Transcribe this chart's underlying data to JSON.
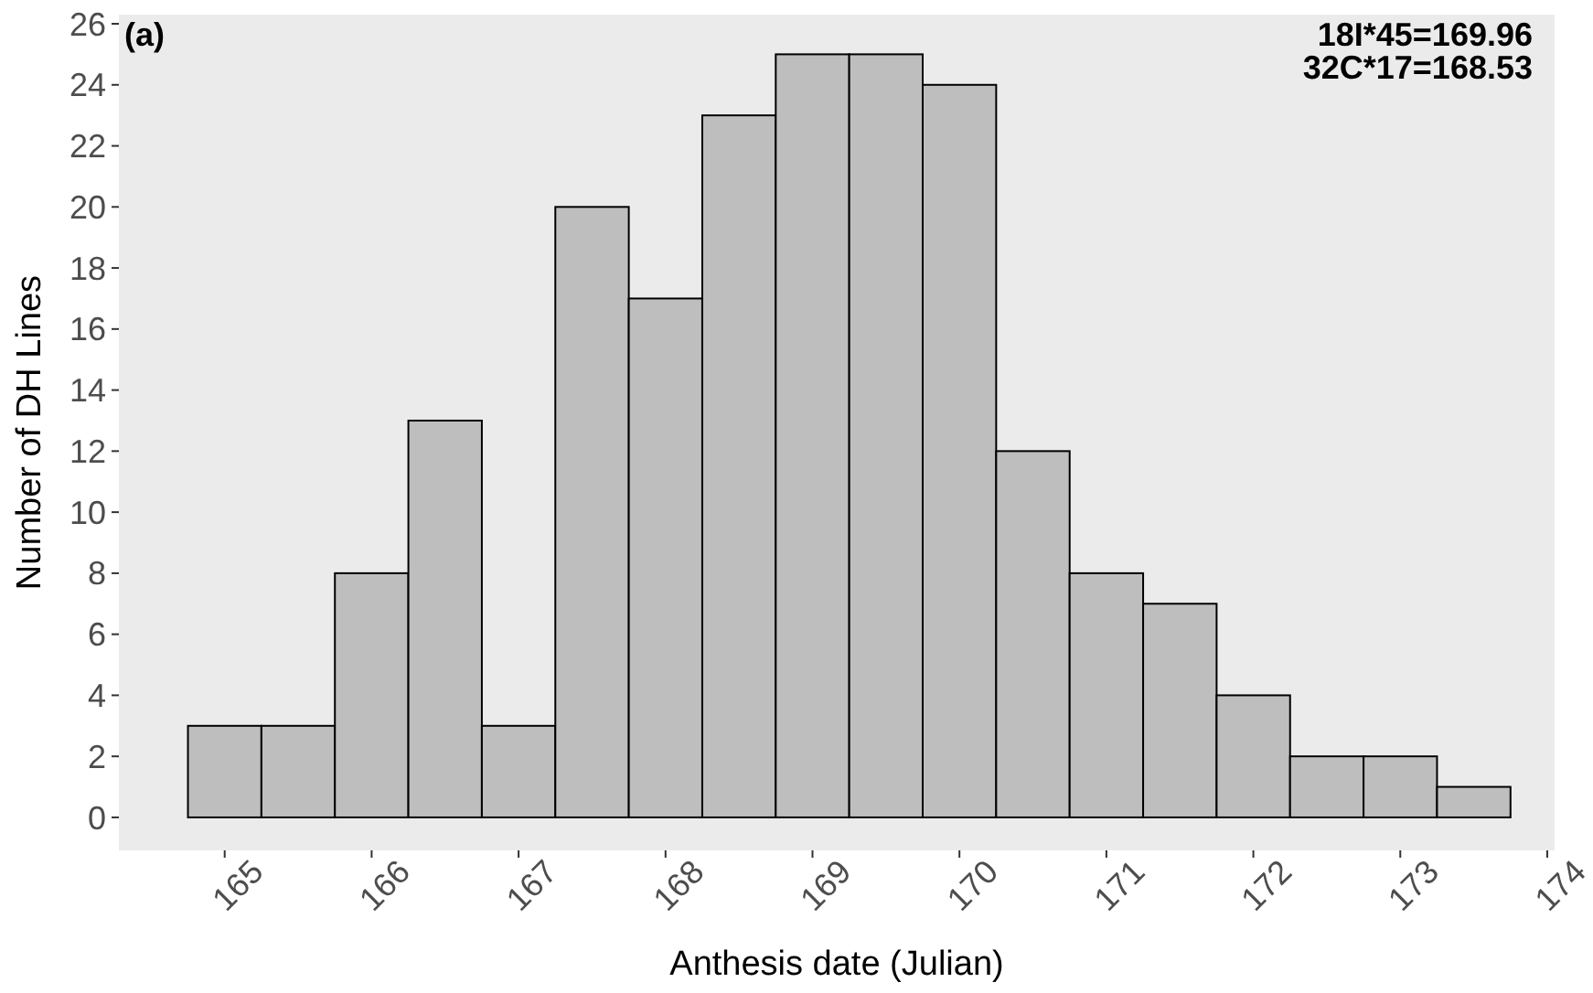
{
  "chart_data": {
    "type": "histogram",
    "xlabel": "Anthesis date (Julian)",
    "ylabel": "Number of DH Lines",
    "bins": [
      164.75,
      165.25,
      165.75,
      166.25,
      166.75,
      167.25,
      167.75,
      168.25,
      168.75,
      169.25,
      169.75,
      170.25,
      170.75,
      171.25,
      171.75,
      172.25,
      172.75,
      173.25,
      173.75
    ],
    "values": [
      3,
      3,
      8,
      13,
      3,
      20,
      17,
      23,
      25,
      25,
      24,
      12,
      8,
      7,
      4,
      2,
      2,
      1
    ],
    "color": "#bebebe",
    "xlim": [
      164.28,
      174.05
    ],
    "ylim": [
      -1.08,
      26.3
    ],
    "xticks": [
      165,
      166,
      167,
      168,
      169,
      170,
      171,
      172,
      173,
      174
    ],
    "yticks": [
      0,
      2,
      4,
      6,
      8,
      10,
      12,
      14,
      16,
      18,
      20,
      22,
      24,
      26
    ],
    "grid": false,
    "annotations": [
      "(a)",
      "18I*45=169.96",
      "32C*17=168.53"
    ]
  }
}
